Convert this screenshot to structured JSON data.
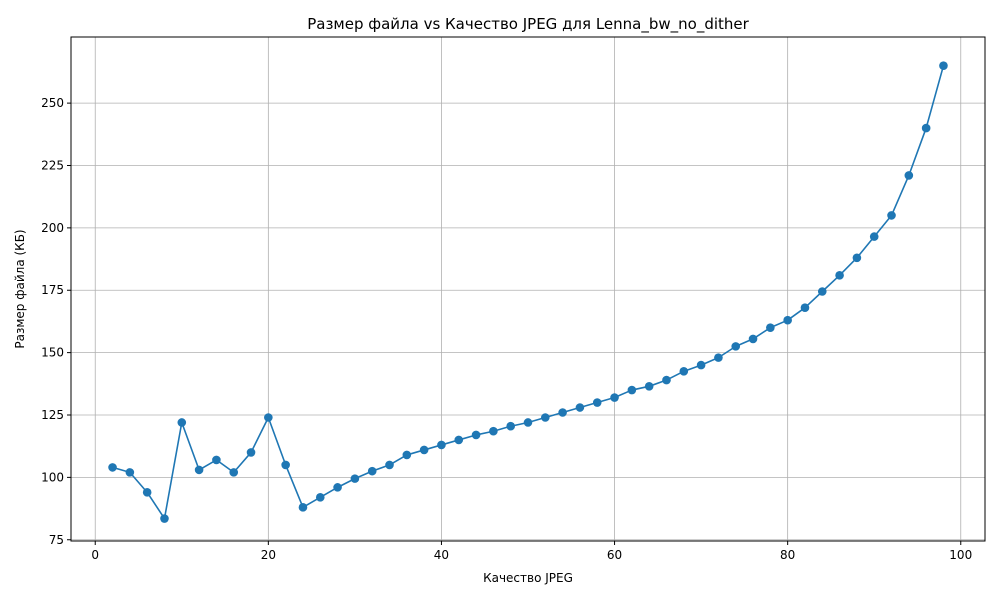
{
  "chart_data": {
    "type": "line",
    "title": "Размер файла vs Качество JPEG для Lenna_bw_no_dither",
    "xlabel": "Качество JPEG",
    "ylabel": "Размер файла (КБ)",
    "xlim": [
      -2.8,
      102.8
    ],
    "ylim": [
      74.5,
      276.5
    ],
    "xticks": [
      0,
      20,
      40,
      60,
      80,
      100
    ],
    "yticks": [
      75,
      100,
      125,
      150,
      175,
      200,
      225,
      250
    ],
    "grid": true,
    "color": "#1f77b4",
    "x": [
      2,
      4,
      6,
      8,
      10,
      12,
      14,
      16,
      18,
      20,
      22,
      24,
      26,
      28,
      30,
      32,
      34,
      36,
      38,
      40,
      42,
      44,
      46,
      48,
      50,
      52,
      54,
      56,
      58,
      60,
      62,
      64,
      66,
      68,
      70,
      72,
      74,
      76,
      78,
      80,
      82,
      84,
      86,
      88,
      90,
      92,
      94,
      96,
      98
    ],
    "y": [
      104,
      102,
      94,
      83.5,
      122,
      103,
      107,
      102,
      110,
      124,
      105,
      88,
      92,
      96,
      99.5,
      102.5,
      105,
      109,
      111,
      113,
      115,
      117,
      118.5,
      120.5,
      122,
      124,
      126,
      128,
      130,
      132,
      135,
      136.5,
      139,
      142.5,
      145,
      148,
      152.5,
      155.5,
      160,
      163,
      168,
      174.5,
      181,
      188,
      196.5,
      205,
      221,
      240,
      265
    ]
  }
}
